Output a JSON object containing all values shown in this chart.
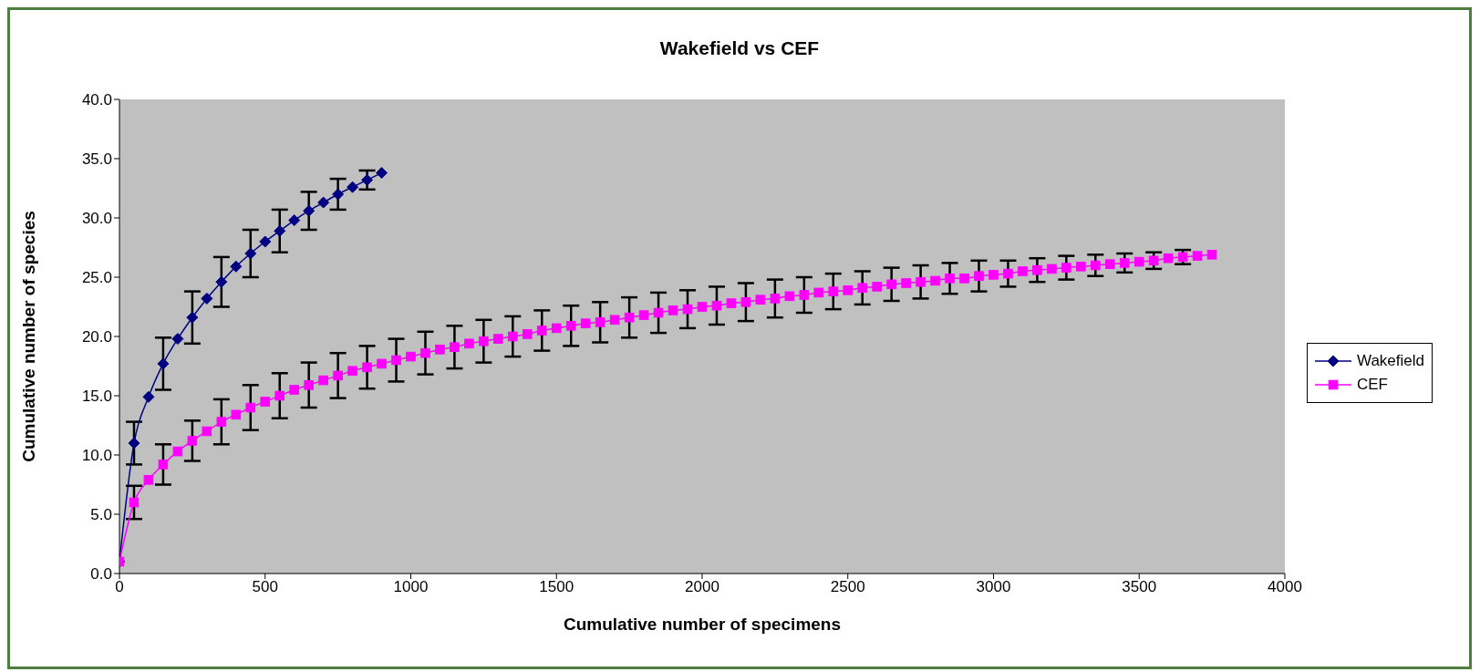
{
  "chart_data": {
    "type": "line",
    "title": "Wakefield vs CEF",
    "xlabel": "Cumulative number of specimens",
    "ylabel": "Cumulative number of species",
    "xlim": [
      0,
      4000
    ],
    "xticks": [
      0,
      500,
      1000,
      1500,
      2000,
      2500,
      3000,
      3500,
      4000
    ],
    "ylim": [
      0,
      40
    ],
    "yticks": [
      {
        "value": 0,
        "label": "0.0"
      },
      {
        "value": 5,
        "label": "5.0"
      },
      {
        "value": 10,
        "label": "10.0"
      },
      {
        "value": 15,
        "label": "15.0"
      },
      {
        "value": 20,
        "label": "20.0"
      },
      {
        "value": 25,
        "label": "25.0"
      },
      {
        "value": 30,
        "label": "30.0"
      },
      {
        "value": 35,
        "label": "35.0"
      },
      {
        "value": 40,
        "label": "40.0"
      }
    ],
    "grid": false,
    "legend": "right",
    "series": [
      {
        "name": "Wakefield",
        "color": "#000080",
        "marker": "diamond",
        "x": [
          0,
          50,
          100,
          150,
          200,
          250,
          300,
          350,
          400,
          450,
          500,
          550,
          600,
          650,
          700,
          750,
          800,
          850,
          900
        ],
        "values": [
          1.0,
          11.0,
          14.9,
          17.7,
          19.8,
          21.6,
          23.2,
          24.6,
          25.9,
          27.0,
          28.0,
          28.9,
          29.8,
          30.6,
          31.3,
          32.0,
          32.6,
          33.2,
          33.8
        ],
        "errors": [
          null,
          1.8,
          null,
          2.2,
          null,
          2.2,
          null,
          2.1,
          null,
          2.0,
          null,
          1.8,
          null,
          1.6,
          null,
          1.3,
          null,
          0.8,
          null
        ]
      },
      {
        "name": "CEF",
        "color": "#ff00ff",
        "marker": "square",
        "x": [
          0,
          50,
          100,
          150,
          200,
          250,
          300,
          350,
          400,
          450,
          500,
          550,
          600,
          650,
          700,
          750,
          800,
          850,
          900,
          950,
          1000,
          1050,
          1100,
          1150,
          1200,
          1250,
          1300,
          1350,
          1400,
          1450,
          1500,
          1550,
          1600,
          1650,
          1700,
          1750,
          1800,
          1850,
          1900,
          1950,
          2000,
          2050,
          2100,
          2150,
          2200,
          2250,
          2300,
          2350,
          2400,
          2450,
          2500,
          2550,
          2600,
          2650,
          2700,
          2750,
          2800,
          2850,
          2900,
          2950,
          3000,
          3050,
          3100,
          3150,
          3200,
          3250,
          3300,
          3350,
          3400,
          3450,
          3500,
          3550,
          3600,
          3650,
          3700,
          3750
        ],
        "values": [
          1.0,
          6.0,
          7.9,
          9.2,
          10.3,
          11.2,
          12.0,
          12.8,
          13.4,
          14.0,
          14.5,
          15.0,
          15.5,
          15.9,
          16.3,
          16.7,
          17.1,
          17.4,
          17.7,
          18.0,
          18.3,
          18.6,
          18.9,
          19.1,
          19.4,
          19.6,
          19.8,
          20.0,
          20.2,
          20.5,
          20.7,
          20.9,
          21.1,
          21.2,
          21.4,
          21.6,
          21.8,
          22.0,
          22.2,
          22.3,
          22.5,
          22.6,
          22.8,
          22.9,
          23.1,
          23.2,
          23.4,
          23.5,
          23.7,
          23.8,
          23.9,
          24.1,
          24.2,
          24.4,
          24.5,
          24.6,
          24.7,
          24.9,
          24.9,
          25.1,
          25.2,
          25.3,
          25.5,
          25.6,
          25.7,
          25.8,
          25.9,
          26.0,
          26.1,
          26.2,
          26.3,
          26.4,
          26.6,
          26.7,
          26.8,
          26.9
        ],
        "errors": [
          null,
          1.4,
          null,
          1.7,
          null,
          1.7,
          null,
          1.9,
          null,
          1.9,
          null,
          1.9,
          null,
          1.9,
          null,
          1.9,
          null,
          1.8,
          null,
          1.8,
          null,
          1.8,
          null,
          1.8,
          null,
          1.8,
          null,
          1.7,
          null,
          1.7,
          null,
          1.7,
          null,
          1.7,
          null,
          1.7,
          null,
          1.7,
          null,
          1.6,
          null,
          1.6,
          null,
          1.6,
          null,
          1.6,
          null,
          1.5,
          null,
          1.5,
          null,
          1.4,
          null,
          1.4,
          null,
          1.4,
          null,
          1.3,
          null,
          1.3,
          null,
          1.1,
          null,
          1.0,
          null,
          1.0,
          null,
          0.9,
          null,
          0.8,
          null,
          0.7,
          null,
          0.6,
          null,
          null
        ]
      }
    ]
  }
}
